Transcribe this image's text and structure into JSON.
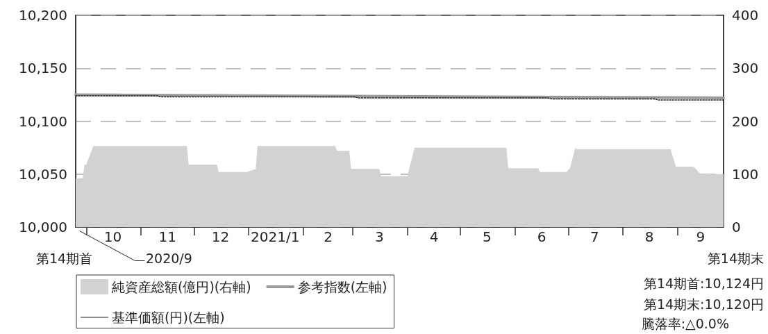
{
  "chart_data": {
    "type": "line",
    "ylim": [
      10000,
      10200
    ],
    "yticks": [
      {
        "value": 10000,
        "label": "10,000"
      },
      {
        "value": 10050,
        "label": "10,050"
      },
      {
        "value": 10100,
        "label": "10,100"
      },
      {
        "value": 10150,
        "label": "10,150"
      },
      {
        "value": 10200,
        "label": "10,200"
      }
    ],
    "y2lim": [
      0,
      400
    ],
    "y2ticks": [
      0,
      100,
      200,
      300,
      400
    ],
    "xlim": [
      "2020-09-25",
      "2021-09-27"
    ],
    "xticks": [
      {
        "value": "2020-10-01",
        "label": null
      },
      {
        "value": "2020-10-16",
        "label": "10"
      },
      {
        "value": "2020-11-01",
        "label": null
      },
      {
        "value": "2020-11-16",
        "label": "11"
      },
      {
        "value": "2020-12-01",
        "label": null
      },
      {
        "value": "2020-12-16",
        "label": "12"
      },
      {
        "value": "2021-01-01",
        "label": null
      },
      {
        "value": "2021-01-16",
        "label": "2021/1"
      },
      {
        "value": "2021-02-01",
        "label": null
      },
      {
        "value": "2021-02-15",
        "label": "2"
      },
      {
        "value": "2021-03-01",
        "label": null
      },
      {
        "value": "2021-03-16",
        "label": "3"
      },
      {
        "value": "2021-04-01",
        "label": null
      },
      {
        "value": "2021-04-16",
        "label": "4"
      },
      {
        "value": "2021-05-01",
        "label": null
      },
      {
        "value": "2021-05-16",
        "label": "5"
      },
      {
        "value": "2021-06-01",
        "label": null
      },
      {
        "value": "2021-06-16",
        "label": "6"
      },
      {
        "value": "2021-07-01",
        "label": null
      },
      {
        "value": "2021-07-16",
        "label": "7"
      },
      {
        "value": "2021-08-01",
        "label": null
      },
      {
        "value": "2021-08-16",
        "label": "8"
      },
      {
        "value": "2021-09-01",
        "label": null
      },
      {
        "value": "2021-09-14",
        "label": "9"
      }
    ],
    "grid": "y",
    "legend": "bottom left",
    "marker": "none",
    "series": [
      {
        "name": "純資産総額(億円)(右軸)",
        "type": "area",
        "axis": "y2",
        "color": "#d1d2d4",
        "x": [
          "2020-09-25",
          "2020-09-29",
          "2020-09-30",
          "2020-10-01",
          "2020-10-05",
          "2020-11-27",
          "2020-11-28",
          "2020-12-14",
          "2020-12-15",
          "2020-12-31",
          "2021-01-05",
          "2021-01-06",
          "2021-02-19",
          "2021-02-20",
          "2021-02-27",
          "2021-02-28",
          "2021-03-16",
          "2021-03-17",
          "2021-04-01",
          "2021-04-02",
          "2021-04-05",
          "2021-05-27",
          "2021-05-28",
          "2021-06-14",
          "2021-06-15",
          "2021-06-30",
          "2021-07-02",
          "2021-07-05",
          "2021-07-06",
          "2021-08-28",
          "2021-08-31",
          "2021-09-10",
          "2021-09-14",
          "2021-09-27"
        ],
        "values": [
          92,
          92,
          118,
          118,
          153,
          153,
          118,
          118,
          104,
          104,
          110,
          153,
          153,
          144,
          144,
          110,
          110,
          96,
          96,
          111,
          150,
          150,
          111,
          111,
          104,
          104,
          111,
          150,
          147,
          147,
          114,
          114,
          100,
          100
        ]
      },
      {
        "name": "参考指数(左軸)",
        "type": "line",
        "color": "#999999",
        "line_style": "solid",
        "x": [
          "2020-09-25",
          "2021-01-15",
          "2021-05-15",
          "2021-09-27"
        ],
        "values": [
          10125,
          10124,
          10123,
          10122
        ]
      },
      {
        "name": "基準価額(円)(左軸)",
        "type": "line",
        "color": "#222222",
        "line_style": "dotted",
        "x": [
          "2020-09-25",
          "2020-11-10",
          "2020-11-12",
          "2021-03-02",
          "2021-03-04",
          "2021-06-19",
          "2021-06-22",
          "2021-08-19",
          "2021-08-21",
          "2021-09-27"
        ],
        "values": [
          10124,
          10124,
          10123,
          10123,
          10122,
          10122,
          10121,
          10121,
          10120,
          10120
        ]
      }
    ],
    "annotations": [
      "第14期首",
      "2020/9",
      "第14期末",
      "第14期首:10,124円",
      "第14期末:10,120円",
      "騰落率:△0.0%"
    ]
  }
}
